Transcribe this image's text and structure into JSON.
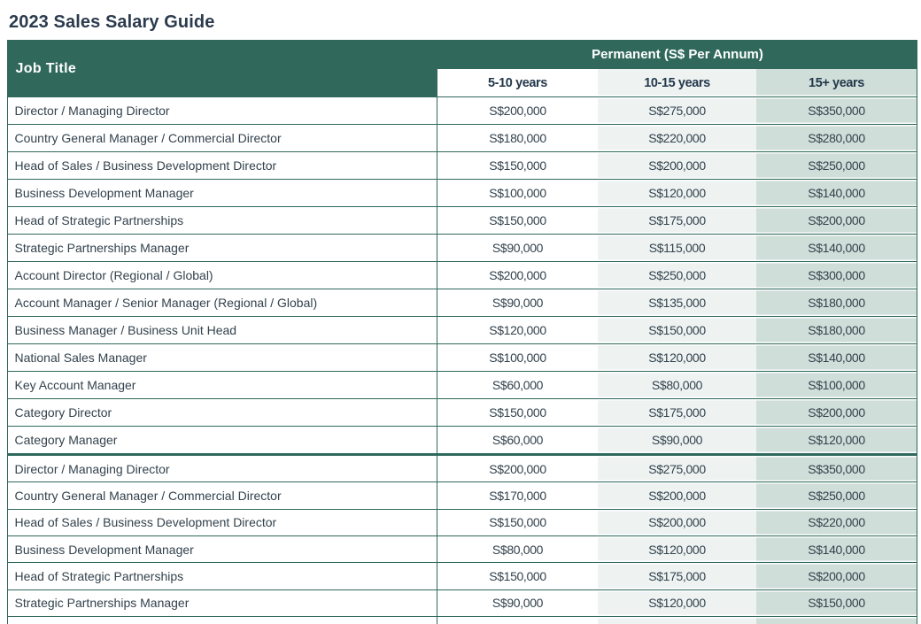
{
  "page_title": "2023 Sales Salary Guide",
  "colors": {
    "header_green": "#30695c",
    "border_green": "#2f695c",
    "column_white": "#ffffff",
    "column_light": "#eef3f2",
    "column_sage": "#cfded8",
    "title_text": "#2b3b4d",
    "header_text": "#ffffff",
    "subheader_text": "#24384c",
    "body_text": "#33424d"
  },
  "table": {
    "job_title_header": "Job Title",
    "group_header": "Permanent (S$ Per Annum)",
    "year_columns": [
      "5-10 years",
      "10-15 years",
      "15+ years"
    ],
    "sections": [
      {
        "rows": [
          {
            "job_title": "Director / Managing Director",
            "values": [
              "S$200,000",
              "S$275,000",
              "S$350,000"
            ]
          },
          {
            "job_title": "Country General Manager / Commercial Director",
            "values": [
              "S$180,000",
              "S$220,000",
              "S$280,000"
            ]
          },
          {
            "job_title": "Head of Sales / Business Development Director",
            "values": [
              "S$150,000",
              "S$200,000",
              "S$250,000"
            ]
          },
          {
            "job_title": "Business Development Manager",
            "values": [
              "S$100,000",
              "S$120,000",
              "S$140,000"
            ]
          },
          {
            "job_title": "Head of Strategic Partnerships",
            "values": [
              "S$150,000",
              "S$175,000",
              "S$200,000"
            ]
          },
          {
            "job_title": "Strategic Partnerships Manager",
            "values": [
              "S$90,000",
              "S$115,000",
              "S$140,000"
            ]
          },
          {
            "job_title": "Account Director (Regional / Global)",
            "values": [
              "S$200,000",
              "S$250,000",
              "S$300,000"
            ]
          },
          {
            "job_title": "Account Manager / Senior Manager (Regional / Global)",
            "values": [
              "S$90,000",
              "S$135,000",
              "S$180,000"
            ]
          },
          {
            "job_title": "Business Manager / Business Unit Head",
            "values": [
              "S$120,000",
              "S$150,000",
              "S$180,000"
            ]
          },
          {
            "job_title": "National Sales Manager",
            "values": [
              "S$100,000",
              "S$120,000",
              "S$140,000"
            ]
          },
          {
            "job_title": "Key Account Manager",
            "values": [
              "S$60,000",
              "S$80,000",
              "S$100,000"
            ]
          },
          {
            "job_title": "Category Director",
            "values": [
              "S$150,000",
              "S$175,000",
              "S$200,000"
            ]
          },
          {
            "job_title": "Category Manager",
            "values": [
              "S$60,000",
              "S$90,000",
              "S$120,000"
            ]
          }
        ]
      },
      {
        "rows": [
          {
            "job_title": "Director / Managing Director",
            "values": [
              "S$200,000",
              "S$275,000",
              "S$350,000"
            ]
          },
          {
            "job_title": "Country General Manager / Commercial Director",
            "values": [
              "S$170,000",
              "S$200,000",
              "S$250,000"
            ]
          },
          {
            "job_title": "Head of Sales / Business Development Director",
            "values": [
              "S$150,000",
              "S$200,000",
              "S$220,000"
            ]
          },
          {
            "job_title": "Business Development Manager",
            "values": [
              "S$80,000",
              "S$120,000",
              "S$140,000"
            ]
          },
          {
            "job_title": "Head of Strategic Partnerships",
            "values": [
              "S$150,000",
              "S$175,000",
              "S$200,000"
            ]
          },
          {
            "job_title": "Strategic Partnerships Manager",
            "values": [
              "S$90,000",
              "S$120,000",
              "S$150,000"
            ]
          },
          {
            "job_title": "",
            "values": [
              "",
              "",
              ""
            ]
          }
        ]
      }
    ]
  }
}
